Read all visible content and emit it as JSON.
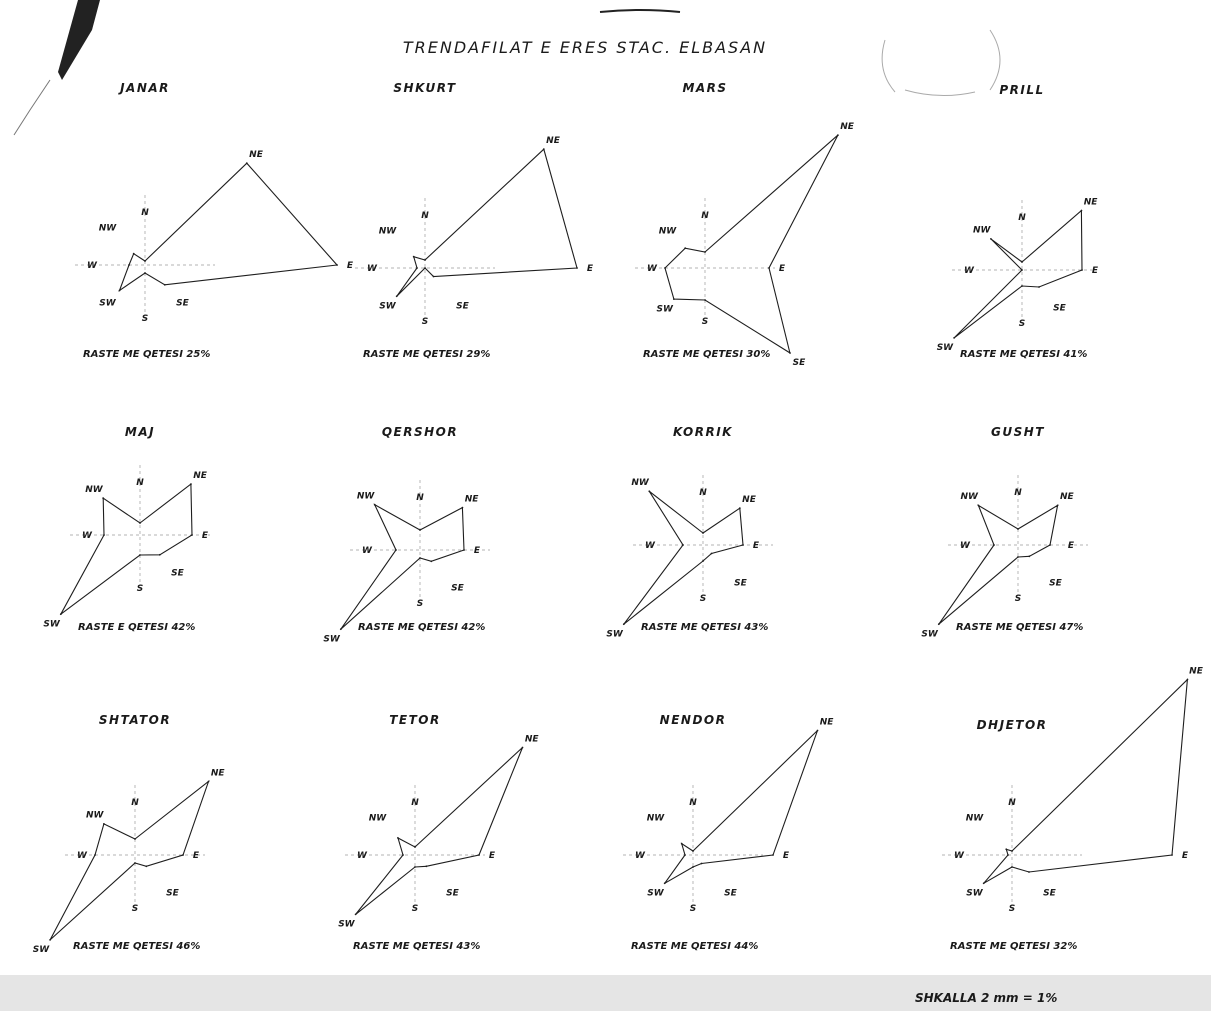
{
  "title": "TRENDAFILAT E ERES  STAC. ELBASAN",
  "scale_note": "SHKALLA 2 mm = 1%",
  "chart_data": {
    "type": "radar",
    "title": "TRENDAFILAT E ERES  STAC. ELBASAN",
    "directions": [
      "N",
      "NE",
      "E",
      "SE",
      "S",
      "SW",
      "W",
      "NW"
    ],
    "unit": "%",
    "charts": [
      {
        "month": "JANAR",
        "calm_label": "RASTE ME QETESI 25%",
        "calm": 25,
        "values": [
          1,
          36,
          48,
          7,
          2,
          9,
          4,
          4
        ]
      },
      {
        "month": "SHKURT",
        "calm_label": "RASTE ME QETESI 29%",
        "calm": 29,
        "values": [
          2,
          42,
          38,
          3,
          0,
          10,
          2,
          4
        ]
      },
      {
        "month": "MARS",
        "calm_label": "RASTE ME QETESI 30%",
        "calm": 30,
        "values": [
          4,
          47,
          16,
          30,
          8,
          11,
          10,
          7
        ]
      },
      {
        "month": "PRILL",
        "calm_label": "RASTE ME QETESI 41%",
        "calm": 41,
        "values": [
          2,
          21,
          15,
          6,
          4,
          24,
          0,
          11
        ]
      },
      {
        "month": "MAJ",
        "calm_label": "RASTE E QETESI 42%",
        "calm": 42,
        "values": [
          3,
          18,
          13,
          7,
          5,
          28,
          9,
          13
        ]
      },
      {
        "month": "QERSHOR",
        "calm_label": "RASTE ME QETESI 42%",
        "calm": 42,
        "values": [
          5,
          15,
          11,
          4,
          2,
          28,
          6,
          16
        ]
      },
      {
        "month": "KORRIK",
        "calm_label": "RASTE ME QETESI 43%",
        "calm": 43,
        "values": [
          3,
          13,
          10,
          3,
          4,
          28,
          5,
          19
        ]
      },
      {
        "month": "GUSHT",
        "calm_label": "RASTE ME QETESI 47%",
        "calm": 47,
        "values": [
          4,
          14,
          8,
          4,
          3,
          28,
          6,
          14
        ]
      },
      {
        "month": "SHTATOR",
        "calm_label": "RASTE ME QETESI 46%",
        "calm": 46,
        "values": [
          4,
          26,
          12,
          4,
          2,
          30,
          10,
          11
        ]
      },
      {
        "month": "TETOR",
        "calm_label": "RASTE ME QETESI 43%",
        "calm": 43,
        "values": [
          2,
          38,
          16,
          4,
          3,
          21,
          3,
          6
        ]
      },
      {
        "month": "NENDOR",
        "calm_label": "RASTE ME QETESI 44%",
        "calm": 44,
        "values": [
          1,
          44,
          20,
          3,
          3,
          10,
          2,
          4
        ]
      },
      {
        "month": "DHJETOR",
        "calm_label": "RASTE ME QETESI 32%",
        "calm": 32,
        "values": [
          1,
          62,
          40,
          6,
          3,
          10,
          1,
          2
        ]
      }
    ]
  }
}
